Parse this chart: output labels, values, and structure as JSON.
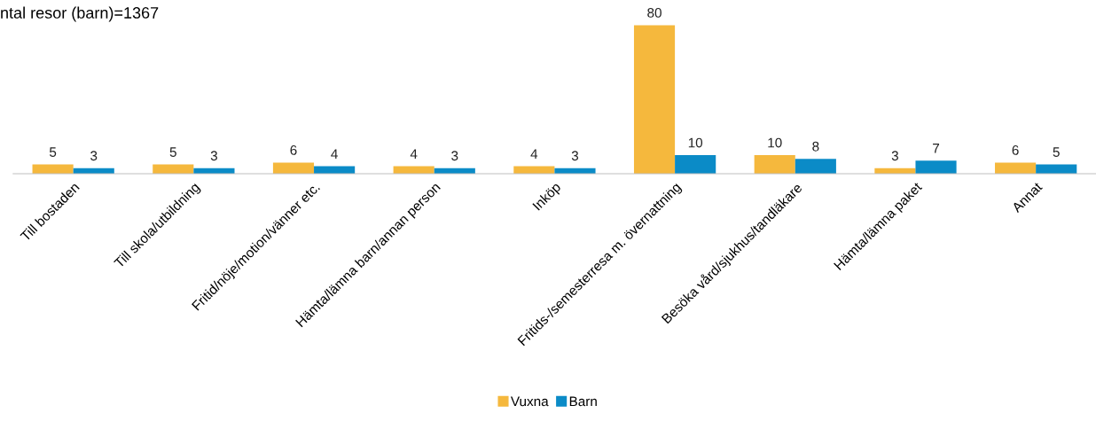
{
  "chart_data": {
    "type": "bar",
    "title": "ntal resor (barn)=1367",
    "categories": [
      "Till bostaden",
      "Till skola/utbildning",
      "Fritid/nöje/motion/vänner etc.",
      "Hämta/lämna barn/annan person",
      "Inköp",
      "Fritids-/semesterresa m. övernattning",
      "Besöka vård/sjukhus/tandläkare",
      "Hämta/lämna paket",
      "Annat"
    ],
    "series": [
      {
        "name": "Vuxna",
        "color": "#f5b83d",
        "values": [
          5,
          5,
          6,
          4,
          4,
          80,
          10,
          3,
          6
        ]
      },
      {
        "name": "Barn",
        "color": "#0b8bc7",
        "values": [
          3,
          3,
          4,
          3,
          3,
          10,
          8,
          7,
          5
        ]
      }
    ],
    "tick_labels": "x",
    "data_labels": true,
    "legend": "bottom",
    "grid": false
  }
}
